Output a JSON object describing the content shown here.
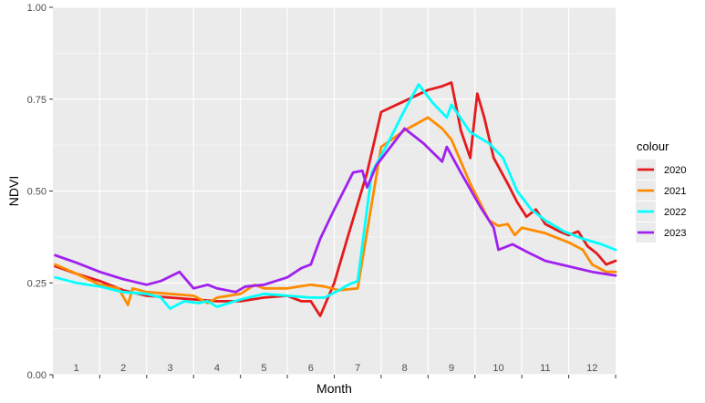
{
  "chart_data": {
    "type": "line",
    "xlabel": "Month",
    "ylabel": "NDVI",
    "ylim": [
      0,
      1
    ],
    "yticks": [
      "0.00",
      "0.25",
      "0.50",
      "0.75",
      "1.00"
    ],
    "xlim": [
      0.5,
      12.5
    ],
    "month_labels": [
      "1",
      "2",
      "3",
      "4",
      "5",
      "6",
      "7",
      "8",
      "9",
      "10",
      "11",
      "12"
    ],
    "grid": true,
    "legend": {
      "title": "colour",
      "position": "right"
    },
    "series": [
      {
        "name": "2020",
        "color": "#e41a1c",
        "points": [
          [
            0.55,
            0.295
          ],
          [
            1.0,
            0.275
          ],
          [
            1.5,
            0.255
          ],
          [
            2.0,
            0.23
          ],
          [
            2.5,
            0.215
          ],
          [
            3.0,
            0.21
          ],
          [
            3.5,
            0.205
          ],
          [
            4.0,
            0.2
          ],
          [
            4.5,
            0.2
          ],
          [
            5.0,
            0.21
          ],
          [
            5.5,
            0.215
          ],
          [
            5.8,
            0.2
          ],
          [
            6.0,
            0.2
          ],
          [
            6.2,
            0.16
          ],
          [
            6.5,
            0.25
          ],
          [
            6.8,
            0.38
          ],
          [
            7.2,
            0.55
          ],
          [
            7.5,
            0.715
          ],
          [
            8.0,
            0.745
          ],
          [
            8.5,
            0.775
          ],
          [
            8.8,
            0.785
          ],
          [
            9.0,
            0.795
          ],
          [
            9.2,
            0.665
          ],
          [
            9.4,
            0.59
          ],
          [
            9.55,
            0.765
          ],
          [
            9.7,
            0.7
          ],
          [
            9.9,
            0.59
          ],
          [
            10.2,
            0.52
          ],
          [
            10.4,
            0.47
          ],
          [
            10.6,
            0.43
          ],
          [
            10.8,
            0.45
          ],
          [
            11.0,
            0.41
          ],
          [
            11.3,
            0.39
          ],
          [
            11.5,
            0.38
          ],
          [
            11.7,
            0.39
          ],
          [
            11.9,
            0.35
          ],
          [
            12.1,
            0.33
          ],
          [
            12.3,
            0.3
          ],
          [
            12.5,
            0.31
          ]
        ]
      },
      {
        "name": "2021",
        "color": "#ff8c00",
        "points": [
          [
            0.55,
            0.3
          ],
          [
            1.0,
            0.275
          ],
          [
            1.5,
            0.245
          ],
          [
            1.9,
            0.235
          ],
          [
            2.1,
            0.19
          ],
          [
            2.2,
            0.235
          ],
          [
            2.5,
            0.225
          ],
          [
            3.0,
            0.22
          ],
          [
            3.5,
            0.215
          ],
          [
            3.8,
            0.195
          ],
          [
            4.0,
            0.21
          ],
          [
            4.5,
            0.22
          ],
          [
            4.8,
            0.245
          ],
          [
            5.0,
            0.235
          ],
          [
            5.5,
            0.235
          ],
          [
            6.0,
            0.245
          ],
          [
            6.3,
            0.24
          ],
          [
            6.6,
            0.23
          ],
          [
            7.0,
            0.235
          ],
          [
            7.5,
            0.62
          ],
          [
            8.0,
            0.665
          ],
          [
            8.5,
            0.7
          ],
          [
            8.8,
            0.67
          ],
          [
            9.0,
            0.64
          ],
          [
            9.4,
            0.52
          ],
          [
            9.8,
            0.42
          ],
          [
            10.0,
            0.405
          ],
          [
            10.2,
            0.41
          ],
          [
            10.35,
            0.38
          ],
          [
            10.5,
            0.4
          ],
          [
            11.0,
            0.385
          ],
          [
            11.5,
            0.36
          ],
          [
            11.8,
            0.34
          ],
          [
            12.0,
            0.3
          ],
          [
            12.3,
            0.28
          ],
          [
            12.5,
            0.28
          ]
        ]
      },
      {
        "name": "2022",
        "color": "#00ffff",
        "points": [
          [
            0.55,
            0.265
          ],
          [
            1.0,
            0.25
          ],
          [
            1.5,
            0.24
          ],
          [
            2.0,
            0.225
          ],
          [
            2.5,
            0.22
          ],
          [
            2.8,
            0.21
          ],
          [
            3.0,
            0.18
          ],
          [
            3.3,
            0.2
          ],
          [
            3.6,
            0.195
          ],
          [
            3.8,
            0.2
          ],
          [
            4.0,
            0.185
          ],
          [
            4.5,
            0.205
          ],
          [
            5.0,
            0.22
          ],
          [
            5.5,
            0.215
          ],
          [
            6.0,
            0.21
          ],
          [
            6.3,
            0.21
          ],
          [
            6.6,
            0.23
          ],
          [
            6.8,
            0.245
          ],
          [
            7.0,
            0.255
          ],
          [
            7.3,
            0.55
          ],
          [
            7.6,
            0.62
          ],
          [
            8.0,
            0.72
          ],
          [
            8.3,
            0.79
          ],
          [
            8.6,
            0.74
          ],
          [
            8.9,
            0.7
          ],
          [
            9.0,
            0.735
          ],
          [
            9.4,
            0.66
          ],
          [
            9.8,
            0.63
          ],
          [
            10.1,
            0.59
          ],
          [
            10.4,
            0.5
          ],
          [
            10.7,
            0.45
          ],
          [
            11.0,
            0.42
          ],
          [
            11.4,
            0.39
          ],
          [
            11.8,
            0.37
          ],
          [
            12.2,
            0.355
          ],
          [
            12.5,
            0.34
          ]
        ]
      },
      {
        "name": "2023",
        "color": "#a020f0",
        "points": [
          [
            0.55,
            0.325
          ],
          [
            1.0,
            0.305
          ],
          [
            1.5,
            0.28
          ],
          [
            2.0,
            0.26
          ],
          [
            2.5,
            0.245
          ],
          [
            2.8,
            0.255
          ],
          [
            3.2,
            0.28
          ],
          [
            3.5,
            0.235
          ],
          [
            3.8,
            0.245
          ],
          [
            4.0,
            0.235
          ],
          [
            4.4,
            0.225
          ],
          [
            4.6,
            0.24
          ],
          [
            5.0,
            0.245
          ],
          [
            5.5,
            0.265
          ],
          [
            5.8,
            0.29
          ],
          [
            6.0,
            0.3
          ],
          [
            6.2,
            0.37
          ],
          [
            6.5,
            0.45
          ],
          [
            6.9,
            0.55
          ],
          [
            7.1,
            0.555
          ],
          [
            7.2,
            0.51
          ],
          [
            7.4,
            0.57
          ],
          [
            7.7,
            0.62
          ],
          [
            8.0,
            0.67
          ],
          [
            8.4,
            0.63
          ],
          [
            8.8,
            0.58
          ],
          [
            8.9,
            0.62
          ],
          [
            9.2,
            0.55
          ],
          [
            9.6,
            0.46
          ],
          [
            9.9,
            0.4
          ],
          [
            10.0,
            0.34
          ],
          [
            10.3,
            0.355
          ],
          [
            10.6,
            0.335
          ],
          [
            11.0,
            0.31
          ],
          [
            11.5,
            0.295
          ],
          [
            12.0,
            0.28
          ],
          [
            12.5,
            0.27
          ]
        ]
      }
    ]
  }
}
